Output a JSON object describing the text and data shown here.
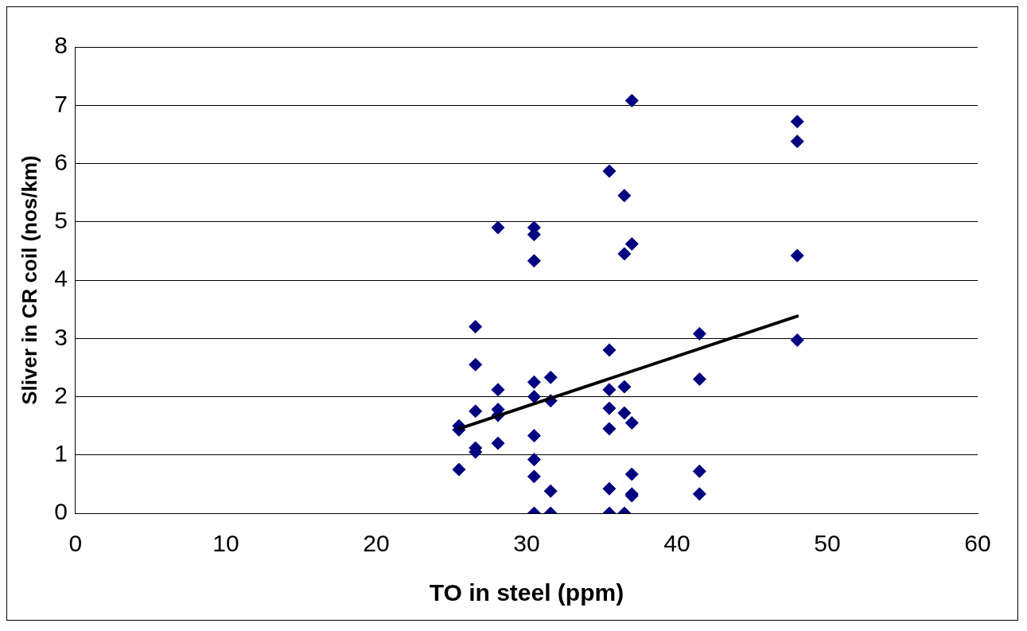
{
  "chart_data": {
    "type": "scatter",
    "xlabel": "TO in steel (ppm)",
    "ylabel": "Sliver in CR coil (nos/km)",
    "xlim": [
      0,
      60
    ],
    "xticks": [
      0,
      10,
      20,
      30,
      40,
      50,
      60
    ],
    "ylim": [
      0,
      8
    ],
    "yticks": [
      0,
      1,
      2,
      3,
      4,
      5,
      6,
      7,
      8
    ],
    "grid": "y",
    "legend": false,
    "marker": "diamond",
    "series": [
      {
        "color": "#000080",
        "x": [
          25.5,
          25.5,
          25.5,
          26.6,
          26.6,
          26.6,
          26.6,
          26.6,
          28.1,
          28.1,
          28.1,
          28.1,
          28.1,
          30.5,
          30.5,
          30.5,
          30.5,
          30.5,
          30.5,
          30.5,
          30.5,
          30.5,
          31.6,
          31.6,
          31.6,
          31.6,
          35.5,
          35.5,
          35.5,
          35.5,
          35.5,
          35.5,
          35.5,
          36.5,
          36.5,
          36.5,
          36.5,
          36.5,
          37,
          37,
          37,
          37,
          37,
          37,
          41.5,
          41.5,
          41.5,
          41.5,
          48,
          48,
          48,
          48
        ],
        "values": [
          1.5,
          1.43,
          0.75,
          3.2,
          2.55,
          1.75,
          1.12,
          1.05,
          4.9,
          2.12,
          1.78,
          1.68,
          1.2,
          4.9,
          4.78,
          4.33,
          2.25,
          2.0,
          1.33,
          0.92,
          0.63,
          0,
          2.33,
          1.93,
          0.38,
          0,
          5.87,
          2.8,
          2.12,
          1.8,
          1.45,
          0.42,
          0,
          5.45,
          4.45,
          2.17,
          1.72,
          0,
          7.08,
          4.62,
          1.55,
          0.67,
          0.33,
          0.3,
          3.08,
          2.3,
          0.72,
          0.33,
          6.72,
          6.38,
          4.42,
          2.97
        ]
      },
      {
        "type": "line",
        "color": "#000000",
        "x": [
          25.5,
          48
        ],
        "values": [
          1.45,
          3.38
        ],
        "marker": "none"
      }
    ]
  }
}
